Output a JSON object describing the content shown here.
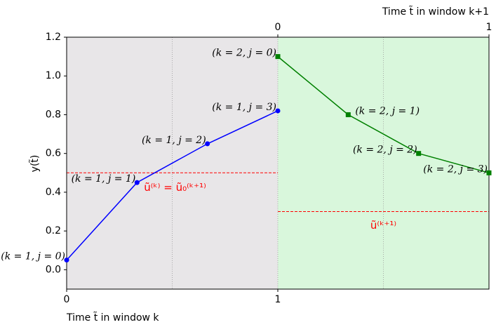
{
  "chart_data": {
    "type": "line",
    "xlabel": "Time t̃ in window k",
    "x2label": "Time t̃ in window k+1",
    "ylabel": "y(t̃)",
    "xlim": [
      0,
      2
    ],
    "ylim": [
      -0.1,
      1.2
    ],
    "xticks": [
      0,
      1
    ],
    "x2ticks": [
      {
        "value": 1,
        "label": "0"
      },
      {
        "value": 2,
        "label": "1"
      }
    ],
    "yticks": [
      {
        "value": 0,
        "label": "0.0"
      },
      {
        "value": 0.2,
        "label": "0.2"
      },
      {
        "value": 0.4,
        "label": "0.4"
      },
      {
        "value": 0.6,
        "label": "0.6"
      },
      {
        "value": 0.8,
        "label": "0.8"
      },
      {
        "value": 1,
        "label": "1.0"
      },
      {
        "value": 1.2,
        "label": "1.2"
      }
    ],
    "vlines": [
      0.5,
      1,
      1.5
    ],
    "regions": [
      {
        "xlim": [
          0,
          1
        ],
        "color": "#e8e6e8"
      },
      {
        "xlim": [
          1,
          2
        ],
        "color": "#d9f7dc"
      }
    ],
    "series": [
      {
        "color": "#0000ff",
        "marker": "circle",
        "x": [
          0,
          0.3333,
          0.6667,
          1
        ],
        "values": [
          0.05,
          0.45,
          0.65,
          0.82
        ],
        "point_labels": [
          "(k = 1, j = 0)",
          "(k = 1, j = 1)",
          "(k = 1, j = 2)",
          "(k = 1, j = 3)"
        ]
      },
      {
        "color": "#008000",
        "marker": "square",
        "x": [
          1,
          1.3333,
          1.6667,
          2
        ],
        "values": [
          1.1,
          0.8,
          0.6,
          0.5
        ],
        "point_labels": [
          "(k = 2, j = 0)",
          "(k = 2, j = 1)",
          "(k = 2, j = 2)",
          "(k = 2, j = 3)"
        ]
      }
    ],
    "reference_lines": [
      {
        "value": 0.5,
        "x_range": [
          0,
          1
        ],
        "color": "#ff0000",
        "label": "ũ⁽ᵏ⁾ = ũ₀⁽ᵏ⁺¹⁾"
      },
      {
        "value": 0.3,
        "x_range": [
          1,
          2
        ],
        "color": "#ff0000",
        "label": "ũ⁽ᵏ⁺¹⁾"
      }
    ]
  }
}
